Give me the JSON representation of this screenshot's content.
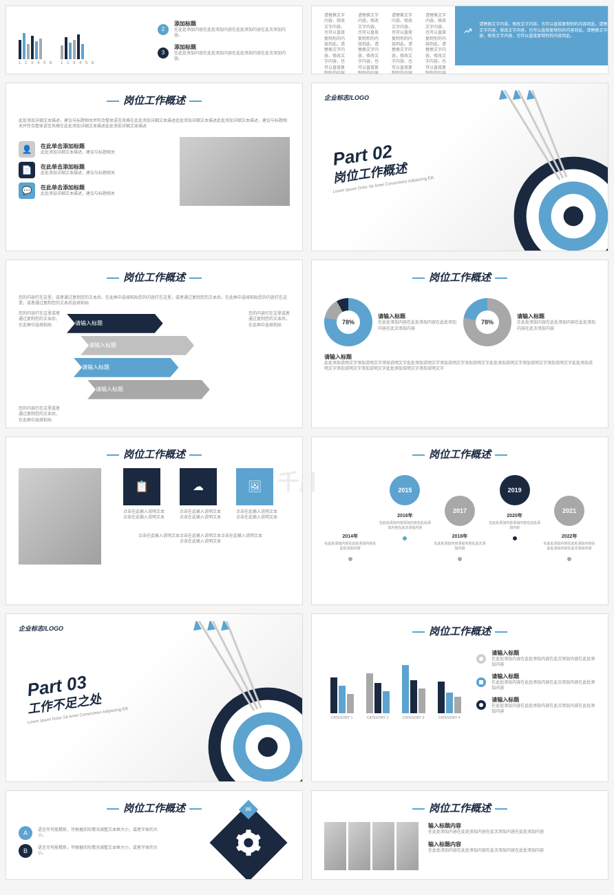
{
  "watermark": "千库网",
  "watermark_sub": "588ku.com",
  "colors": {
    "blue": "#5ca3d0",
    "navy": "#1a2940",
    "gray": "#a8a8a8",
    "lightgray": "#d0d0d0"
  },
  "section_title": "岗位工作概述",
  "logo": "企业标志/LOGO",
  "add_title": "添加标题",
  "add_title_desc": "在此处添加内容在此处添加内容在此处添加内容在此次添加内容。",
  "click_add": "在此单击添加标题",
  "click_add_desc": "此处添加详细文本描述，建议与标题相关",
  "intro_text": "此处添加详细文本描述，建议与标题相关并符合整体语言风格在此处添加详细文本描述此处添加详细文本描述此处添加详细文本描述，建议与标题相关并符合整体语言风格在此处添加详细文本描述此处添加详细文本描述",
  "input_title": "请输入标题",
  "input_content": "输入标题内容",
  "click_input": "点击在此输入说明文本点击在此输入说明文本点击在此输入说明文本\n点击在此输入说明文本",
  "slide1_bars": {
    "set1": [
      [
        28,
        "#1a2940"
      ],
      [
        38,
        "#5ca3d0"
      ],
      [
        22,
        "#a8a8a8"
      ],
      [
        34,
        "#1a2940"
      ],
      [
        26,
        "#5ca3d0"
      ],
      [
        30,
        "#a8a8a8"
      ]
    ],
    "set2": [
      [
        20,
        "#a8a8a8"
      ],
      [
        32,
        "#1a2940"
      ],
      [
        24,
        "#5ca3d0"
      ],
      [
        28,
        "#a8a8a8"
      ],
      [
        36,
        "#1a2940"
      ],
      [
        22,
        "#5ca3d0"
      ]
    ],
    "labels": [
      "1",
      "2",
      "3",
      "4",
      "5",
      "6"
    ]
  },
  "slide1_right_top": "请替换文字内容，修改文字内容，也可以直接复制你的内容到此。请替换文字内容，修改文字内容，也可以直接复制你的内容到此。",
  "slide1_right_panel": "请替换文字内容，修改文字内容，也可以直接复制你的内容到此。请替换文字内容，修改文字内容，也可以直接复制你的内容到此。请替换文字内容，修改文字内容，也可以直接复制你的内容到此。",
  "part02": {
    "num": "Part 02",
    "title": "岗位工作概述",
    "sub": "Lorem Ipsum Dolor Sit Amet Consectetur Adipiscing Elit"
  },
  "part03": {
    "num": "Part 03",
    "title": "工作不足之处",
    "sub": "Lorem Ipsum Dolor Sit Amet Consectetur Adipiscing Elit"
  },
  "slide5_intro": "您的内容打在这里，或者通过复制您的文本后，在此框中选择粘贴您的内容打在这里，或者通过复制您的文本后，在此框中选择粘贴您的内容打在这里，或者通过复制您的文本后选择粘贴",
  "slide5_side": "您的内容打在这里或者通过复制您的文本后，在此框中选择粘贴",
  "donut_desc": "在此处添加内容在此处添加内容在此处添加内容在此次添加内容",
  "donut_bottom": "此处添加说明文字添加说明文字添加说明文字此处添加说明文字添加说明文字添加说明文字此处添加说明文字添加说明文字添加说明文字此处添加说明文字添加说明文字添加说明文字此处添加说明文字添加说明文字",
  "slide7_item": "点击在此输入说明文本点击在此输入说明文本",
  "timeline": [
    {
      "year": "2014年",
      "desc": "在此处添加内容在此处添加内容在此处添加内容"
    },
    {
      "year": "2016年",
      "circle": "2015",
      "color": "#5ca3d0",
      "desc": "在此处添加内容添加内容在此处添加内容在此次添加内容"
    },
    {
      "year": "2018年",
      "circle": "2017",
      "color": "#a8a8a8",
      "desc": "在此处添加内容添加内容在此次添加内容"
    },
    {
      "year": "2020年",
      "circle": "2019",
      "color": "#1a2940",
      "desc": "在此处添加内容添加内容在此处添加内容"
    },
    {
      "year": "2022年",
      "circle": "2021",
      "color": "#a8a8a8",
      "desc": "在此处添加内容在此处添加内容在此处添加内容在此次添加内容"
    }
  ],
  "slide10_cats": [
    "CATEGORY 1",
    "CATEGORY 2",
    "CATEGORY 3",
    "CATEGORY 4"
  ],
  "slide10_bars": [
    [
      [
        52,
        "#1a2940"
      ],
      [
        40,
        "#5ca3d0"
      ],
      [
        28,
        "#a8a8a8"
      ]
    ],
    [
      [
        58,
        "#a8a8a8"
      ],
      [
        44,
        "#1a2940"
      ],
      [
        32,
        "#5ca3d0"
      ]
    ],
    [
      [
        70,
        "#5ca3d0"
      ],
      [
        48,
        "#1a2940"
      ],
      [
        36,
        "#a8a8a8"
      ]
    ],
    [
      [
        46,
        "#1a2940"
      ],
      [
        30,
        "#5ca3d0"
      ],
      [
        24,
        "#a8a8a8"
      ]
    ]
  ],
  "slide10_desc": "在此处添加内容在此处添加内容在此次添加内容在此处添加内容",
  "pill_text": "语言尽可能精炼，可根据实际情况调整文本框大小，或者字体的大小。"
}
